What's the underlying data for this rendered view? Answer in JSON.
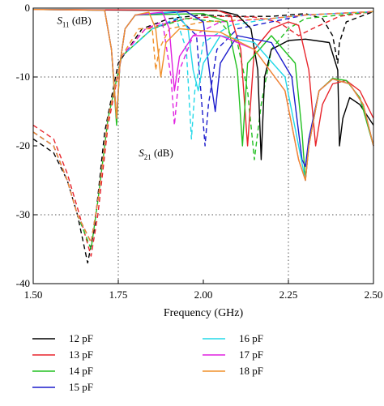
{
  "chart_data": {
    "type": "line",
    "title": "",
    "xlabel": "Frequency (GHz)",
    "ylabel": "",
    "xlim": [
      1.5,
      2.5
    ],
    "ylim": [
      -40,
      0
    ],
    "xticks": [
      "1.50",
      "1.75",
      "2.00",
      "2.25",
      "2.50"
    ],
    "yticks": [
      "0",
      "-10",
      "-20",
      "-30",
      "-40"
    ],
    "xtick_values": [
      1.5,
      1.75,
      2.0,
      2.25,
      2.5
    ],
    "ytick_values": [
      0,
      -10,
      -20,
      -30,
      -40
    ],
    "grid": "dotted at 1.75 and 2.25 GHz, -10 and -30 dB",
    "grid_x": [
      1.75,
      2.25
    ],
    "grid_y": [
      -10,
      -30
    ],
    "annotations": [
      {
        "id": "s11",
        "main": "S",
        "sub": "11",
        "rest": " (dB)",
        "x": 1.57,
        "y": -2.3
      },
      {
        "id": "s21",
        "main": "S",
        "sub": "21",
        "rest": " (dB)",
        "x": 1.81,
        "y": -21.5
      }
    ],
    "legend_position": "bottom",
    "s11_line_style": "solid",
    "s21_line_style": "dashed",
    "series": [
      {
        "name": "12 pF",
        "color": "#000000",
        "s11": [
          [
            1.5,
            -0.2
          ],
          [
            2.05,
            -0.4
          ],
          [
            2.1,
            -1
          ],
          [
            2.14,
            -3
          ],
          [
            2.16,
            -9
          ],
          [
            2.17,
            -22
          ],
          [
            2.18,
            -10
          ],
          [
            2.2,
            -6
          ],
          [
            2.25,
            -4.7
          ],
          [
            2.3,
            -4.5
          ],
          [
            2.37,
            -5
          ],
          [
            2.395,
            -9
          ],
          [
            2.4,
            -20
          ],
          [
            2.41,
            -16
          ],
          [
            2.43,
            -13
          ],
          [
            2.46,
            -14
          ],
          [
            2.5,
            -17
          ]
        ],
        "s21": [
          [
            1.5,
            -19
          ],
          [
            1.56,
            -21
          ],
          [
            1.6,
            -25
          ],
          [
            1.63,
            -30
          ],
          [
            1.66,
            -37
          ],
          [
            1.68,
            -32
          ],
          [
            1.71,
            -18
          ],
          [
            1.75,
            -8
          ],
          [
            1.82,
            -3
          ],
          [
            1.9,
            -1.5
          ],
          [
            2.0,
            -1
          ],
          [
            2.1,
            -1.2
          ],
          [
            2.2,
            -1.2
          ],
          [
            2.3,
            -0.8
          ],
          [
            2.35,
            -1.5
          ],
          [
            2.38,
            -4
          ],
          [
            2.395,
            -8
          ],
          [
            2.4,
            -5
          ],
          [
            2.42,
            -2
          ],
          [
            2.5,
            -0.5
          ]
        ]
      },
      {
        "name": "13 pF",
        "color": "#e8242b",
        "s11": [
          [
            1.5,
            -0.2
          ],
          [
            2.04,
            -0.3
          ],
          [
            2.08,
            -1
          ],
          [
            2.11,
            -6
          ],
          [
            2.13,
            -20
          ],
          [
            2.15,
            -6
          ],
          [
            2.2,
            -3
          ],
          [
            2.25,
            -2
          ],
          [
            2.28,
            -2.5
          ],
          [
            2.31,
            -9
          ],
          [
            2.33,
            -20
          ],
          [
            2.35,
            -14
          ],
          [
            2.38,
            -11
          ],
          [
            2.42,
            -10.5
          ],
          [
            2.46,
            -12
          ],
          [
            2.5,
            -16
          ]
        ],
        "s21": [
          [
            1.5,
            -17
          ],
          [
            1.56,
            -19
          ],
          [
            1.6,
            -24
          ],
          [
            1.63,
            -29
          ],
          [
            1.67,
            -36
          ],
          [
            1.69,
            -30
          ],
          [
            1.72,
            -17
          ],
          [
            1.76,
            -7
          ],
          [
            1.83,
            -3
          ],
          [
            1.95,
            -1.5
          ],
          [
            2.05,
            -1.2
          ],
          [
            2.15,
            -1.3
          ],
          [
            2.22,
            -2
          ],
          [
            2.28,
            -4
          ],
          [
            2.32,
            -3
          ],
          [
            2.4,
            -1.2
          ],
          [
            2.5,
            -0.5
          ]
        ]
      },
      {
        "name": "14 pF",
        "color": "#22c021",
        "s11": [
          [
            1.5,
            -0.2
          ],
          [
            1.71,
            -0.3
          ],
          [
            1.73,
            -6
          ],
          [
            1.745,
            -17
          ],
          [
            1.755,
            -8
          ],
          [
            1.77,
            -3
          ],
          [
            1.8,
            -1
          ],
          [
            2.0,
            -0.8
          ],
          [
            2.07,
            -2
          ],
          [
            2.1,
            -9
          ],
          [
            2.115,
            -20
          ],
          [
            2.13,
            -8
          ],
          [
            2.2,
            -4
          ],
          [
            2.27,
            -8
          ],
          [
            2.29,
            -18
          ],
          [
            2.3,
            -25
          ],
          [
            2.31,
            -20
          ],
          [
            2.34,
            -12
          ],
          [
            2.38,
            -10.2
          ],
          [
            2.42,
            -10.5
          ],
          [
            2.46,
            -13
          ],
          [
            2.5,
            -20
          ]
        ],
        "s21": [
          [
            1.5,
            -18
          ],
          [
            1.56,
            -20
          ],
          [
            1.6,
            -25
          ],
          [
            1.63,
            -30
          ],
          [
            1.67,
            -35
          ],
          [
            1.69,
            -28
          ],
          [
            1.72,
            -16
          ],
          [
            1.76,
            -7
          ],
          [
            1.85,
            -3
          ],
          [
            1.95,
            -1.5
          ],
          [
            2.05,
            -2
          ],
          [
            2.1,
            -5
          ],
          [
            2.13,
            -12
          ],
          [
            2.15,
            -22
          ],
          [
            2.17,
            -14
          ],
          [
            2.2,
            -6
          ],
          [
            2.25,
            -3
          ],
          [
            2.3,
            -1.5
          ],
          [
            2.5,
            -0.5
          ]
        ]
      },
      {
        "name": "15 pF",
        "color": "#1c1ccc",
        "s11": [
          [
            1.5,
            -0.2
          ],
          [
            1.71,
            -0.3
          ],
          [
            1.73,
            -6
          ],
          [
            1.745,
            -16
          ],
          [
            1.755,
            -8
          ],
          [
            1.77,
            -3
          ],
          [
            1.8,
            -1
          ],
          [
            1.95,
            -0.5
          ],
          [
            2.0,
            -2
          ],
          [
            2.02,
            -10
          ],
          [
            2.035,
            -15
          ],
          [
            2.05,
            -8
          ],
          [
            2.1,
            -4
          ],
          [
            2.2,
            -5
          ],
          [
            2.26,
            -10
          ],
          [
            2.29,
            -22
          ],
          [
            2.3,
            -23
          ],
          [
            2.31,
            -19
          ],
          [
            2.34,
            -12
          ],
          [
            2.38,
            -10.3
          ],
          [
            2.43,
            -11
          ],
          [
            2.47,
            -14
          ],
          [
            2.5,
            -20
          ]
        ],
        "s21": [
          [
            1.5,
            -18
          ],
          [
            1.56,
            -20
          ],
          [
            1.6,
            -25
          ],
          [
            1.63,
            -30
          ],
          [
            1.67,
            -34
          ],
          [
            1.69,
            -28
          ],
          [
            1.72,
            -16
          ],
          [
            1.76,
            -7
          ],
          [
            1.85,
            -3
          ],
          [
            1.93,
            -1.5
          ],
          [
            1.98,
            -4
          ],
          [
            2.005,
            -20
          ],
          [
            2.015,
            -14
          ],
          [
            2.04,
            -6
          ],
          [
            2.1,
            -3
          ],
          [
            2.2,
            -2
          ],
          [
            2.3,
            -1
          ],
          [
            2.5,
            -0.5
          ]
        ]
      },
      {
        "name": "16 pF",
        "color": "#22d8e8",
        "s11": [
          [
            1.5,
            -0.2
          ],
          [
            1.71,
            -0.3
          ],
          [
            1.73,
            -6
          ],
          [
            1.745,
            -16
          ],
          [
            1.755,
            -8
          ],
          [
            1.77,
            -3
          ],
          [
            1.8,
            -1
          ],
          [
            1.92,
            -0.5
          ],
          [
            1.955,
            -3
          ],
          [
            1.97,
            -9
          ],
          [
            1.985,
            -12
          ],
          [
            2.0,
            -8
          ],
          [
            2.05,
            -4
          ],
          [
            2.15,
            -5
          ],
          [
            2.24,
            -10
          ],
          [
            2.28,
            -20
          ],
          [
            2.3,
            -25
          ],
          [
            2.31,
            -20
          ],
          [
            2.34,
            -12
          ],
          [
            2.38,
            -10.3
          ],
          [
            2.43,
            -11
          ],
          [
            2.47,
            -14
          ],
          [
            2.5,
            -20
          ]
        ],
        "s21": [
          [
            1.5,
            -18
          ],
          [
            1.56,
            -20
          ],
          [
            1.6,
            -25
          ],
          [
            1.63,
            -30
          ],
          [
            1.67,
            -34
          ],
          [
            1.69,
            -28
          ],
          [
            1.72,
            -16
          ],
          [
            1.76,
            -7
          ],
          [
            1.85,
            -3
          ],
          [
            1.92,
            -1.5
          ],
          [
            1.95,
            -6
          ],
          [
            1.965,
            -19
          ],
          [
            1.975,
            -12
          ],
          [
            2.0,
            -5
          ],
          [
            2.08,
            -2.5
          ],
          [
            2.2,
            -1.5
          ],
          [
            2.3,
            -1
          ],
          [
            2.5,
            -0.5
          ]
        ]
      },
      {
        "name": "17 pF",
        "color": "#e020e0",
        "s11": [
          [
            1.5,
            -0.2
          ],
          [
            1.71,
            -0.3
          ],
          [
            1.73,
            -6
          ],
          [
            1.745,
            -16
          ],
          [
            1.755,
            -8
          ],
          [
            1.77,
            -3
          ],
          [
            1.8,
            -1
          ],
          [
            1.88,
            -0.6
          ],
          [
            1.9,
            -3
          ],
          [
            1.915,
            -12
          ],
          [
            1.93,
            -7
          ],
          [
            1.97,
            -4
          ],
          [
            2.05,
            -4
          ],
          [
            2.15,
            -6
          ],
          [
            2.24,
            -12
          ],
          [
            2.28,
            -22
          ],
          [
            2.3,
            -25
          ],
          [
            2.31,
            -20
          ],
          [
            2.34,
            -12
          ],
          [
            2.38,
            -10.3
          ],
          [
            2.43,
            -11
          ],
          [
            2.47,
            -14
          ],
          [
            2.5,
            -20
          ]
        ],
        "s21": [
          [
            1.5,
            -18
          ],
          [
            1.56,
            -20
          ],
          [
            1.6,
            -25
          ],
          [
            1.63,
            -30
          ],
          [
            1.67,
            -34
          ],
          [
            1.69,
            -28
          ],
          [
            1.72,
            -16
          ],
          [
            1.76,
            -7
          ],
          [
            1.83,
            -3
          ],
          [
            1.88,
            -2
          ],
          [
            1.905,
            -10
          ],
          [
            1.915,
            -17
          ],
          [
            1.93,
            -9
          ],
          [
            1.97,
            -4
          ],
          [
            2.05,
            -2
          ],
          [
            2.2,
            -1.5
          ],
          [
            2.3,
            -1
          ],
          [
            2.5,
            -0.5
          ]
        ]
      },
      {
        "name": "18 pF",
        "color": "#f0902a",
        "s11": [
          [
            1.5,
            -0.2
          ],
          [
            1.71,
            -0.3
          ],
          [
            1.73,
            -6
          ],
          [
            1.745,
            -16
          ],
          [
            1.755,
            -8
          ],
          [
            1.77,
            -3
          ],
          [
            1.8,
            -1
          ],
          [
            1.84,
            -0.6
          ],
          [
            1.86,
            -3
          ],
          [
            1.875,
            -10
          ],
          [
            1.89,
            -5
          ],
          [
            1.93,
            -3
          ],
          [
            2.05,
            -3.5
          ],
          [
            2.15,
            -6
          ],
          [
            2.24,
            -12
          ],
          [
            2.28,
            -22
          ],
          [
            2.3,
            -25
          ],
          [
            2.31,
            -20
          ],
          [
            2.34,
            -12
          ],
          [
            2.38,
            -10.3
          ],
          [
            2.43,
            -11
          ],
          [
            2.47,
            -14
          ],
          [
            2.5,
            -20
          ]
        ],
        "s21": [
          [
            1.5,
            -18
          ],
          [
            1.56,
            -20
          ],
          [
            1.6,
            -25
          ],
          [
            1.63,
            -30
          ],
          [
            1.67,
            -34
          ],
          [
            1.69,
            -28
          ],
          [
            1.72,
            -16
          ],
          [
            1.76,
            -7
          ],
          [
            1.81,
            -3
          ],
          [
            1.85,
            -3
          ],
          [
            1.86,
            -9
          ],
          [
            1.87,
            -6
          ],
          [
            1.9,
            -3
          ],
          [
            2.0,
            -2
          ],
          [
            2.2,
            -1.5
          ],
          [
            2.3,
            -1
          ],
          [
            2.5,
            -0.5
          ]
        ]
      }
    ]
  }
}
